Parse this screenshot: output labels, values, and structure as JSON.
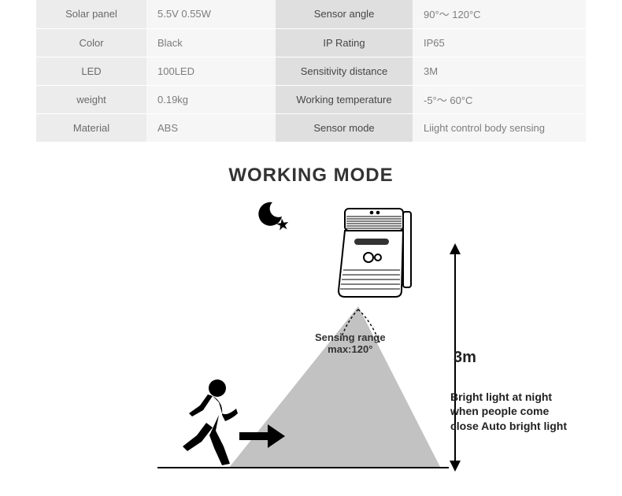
{
  "table": {
    "rows": [
      {
        "l1": "Solar panel",
        "v1": "5.5V  0.55W",
        "l2": "Sensor angle",
        "v2": "90°～ 120°C"
      },
      {
        "l1": "Color",
        "v1": "Black",
        "l2": "IP Rating",
        "v2": "IP65"
      },
      {
        "l1": "LED",
        "v1": "100LED",
        "l2": "Sensitivity distance",
        "v2": "3M"
      },
      {
        "l1": "weight",
        "v1": "0.19kg",
        "l2": "Working temperature",
        "v2": "-5°～ 60°C"
      },
      {
        "l1": "Material",
        "v1": "ABS",
        "l2": "Sensor mode",
        "v2": "Liight control body sensing"
      }
    ]
  },
  "heading": "WORKING MODE",
  "diagram": {
    "sensing_label_line1": "Sensing range",
    "sensing_label_line2": "max:120°",
    "height_label": "3m",
    "description": "Bright light at night when people come close Auto bright light"
  },
  "colors": {
    "light_cell": "#ececed",
    "dark_cell": "#dfdfe0",
    "val_cell": "#f6f6f7",
    "text_muted": "#7d7d7d",
    "beam_fill": "#bfbfbf",
    "ink": "#000000"
  }
}
